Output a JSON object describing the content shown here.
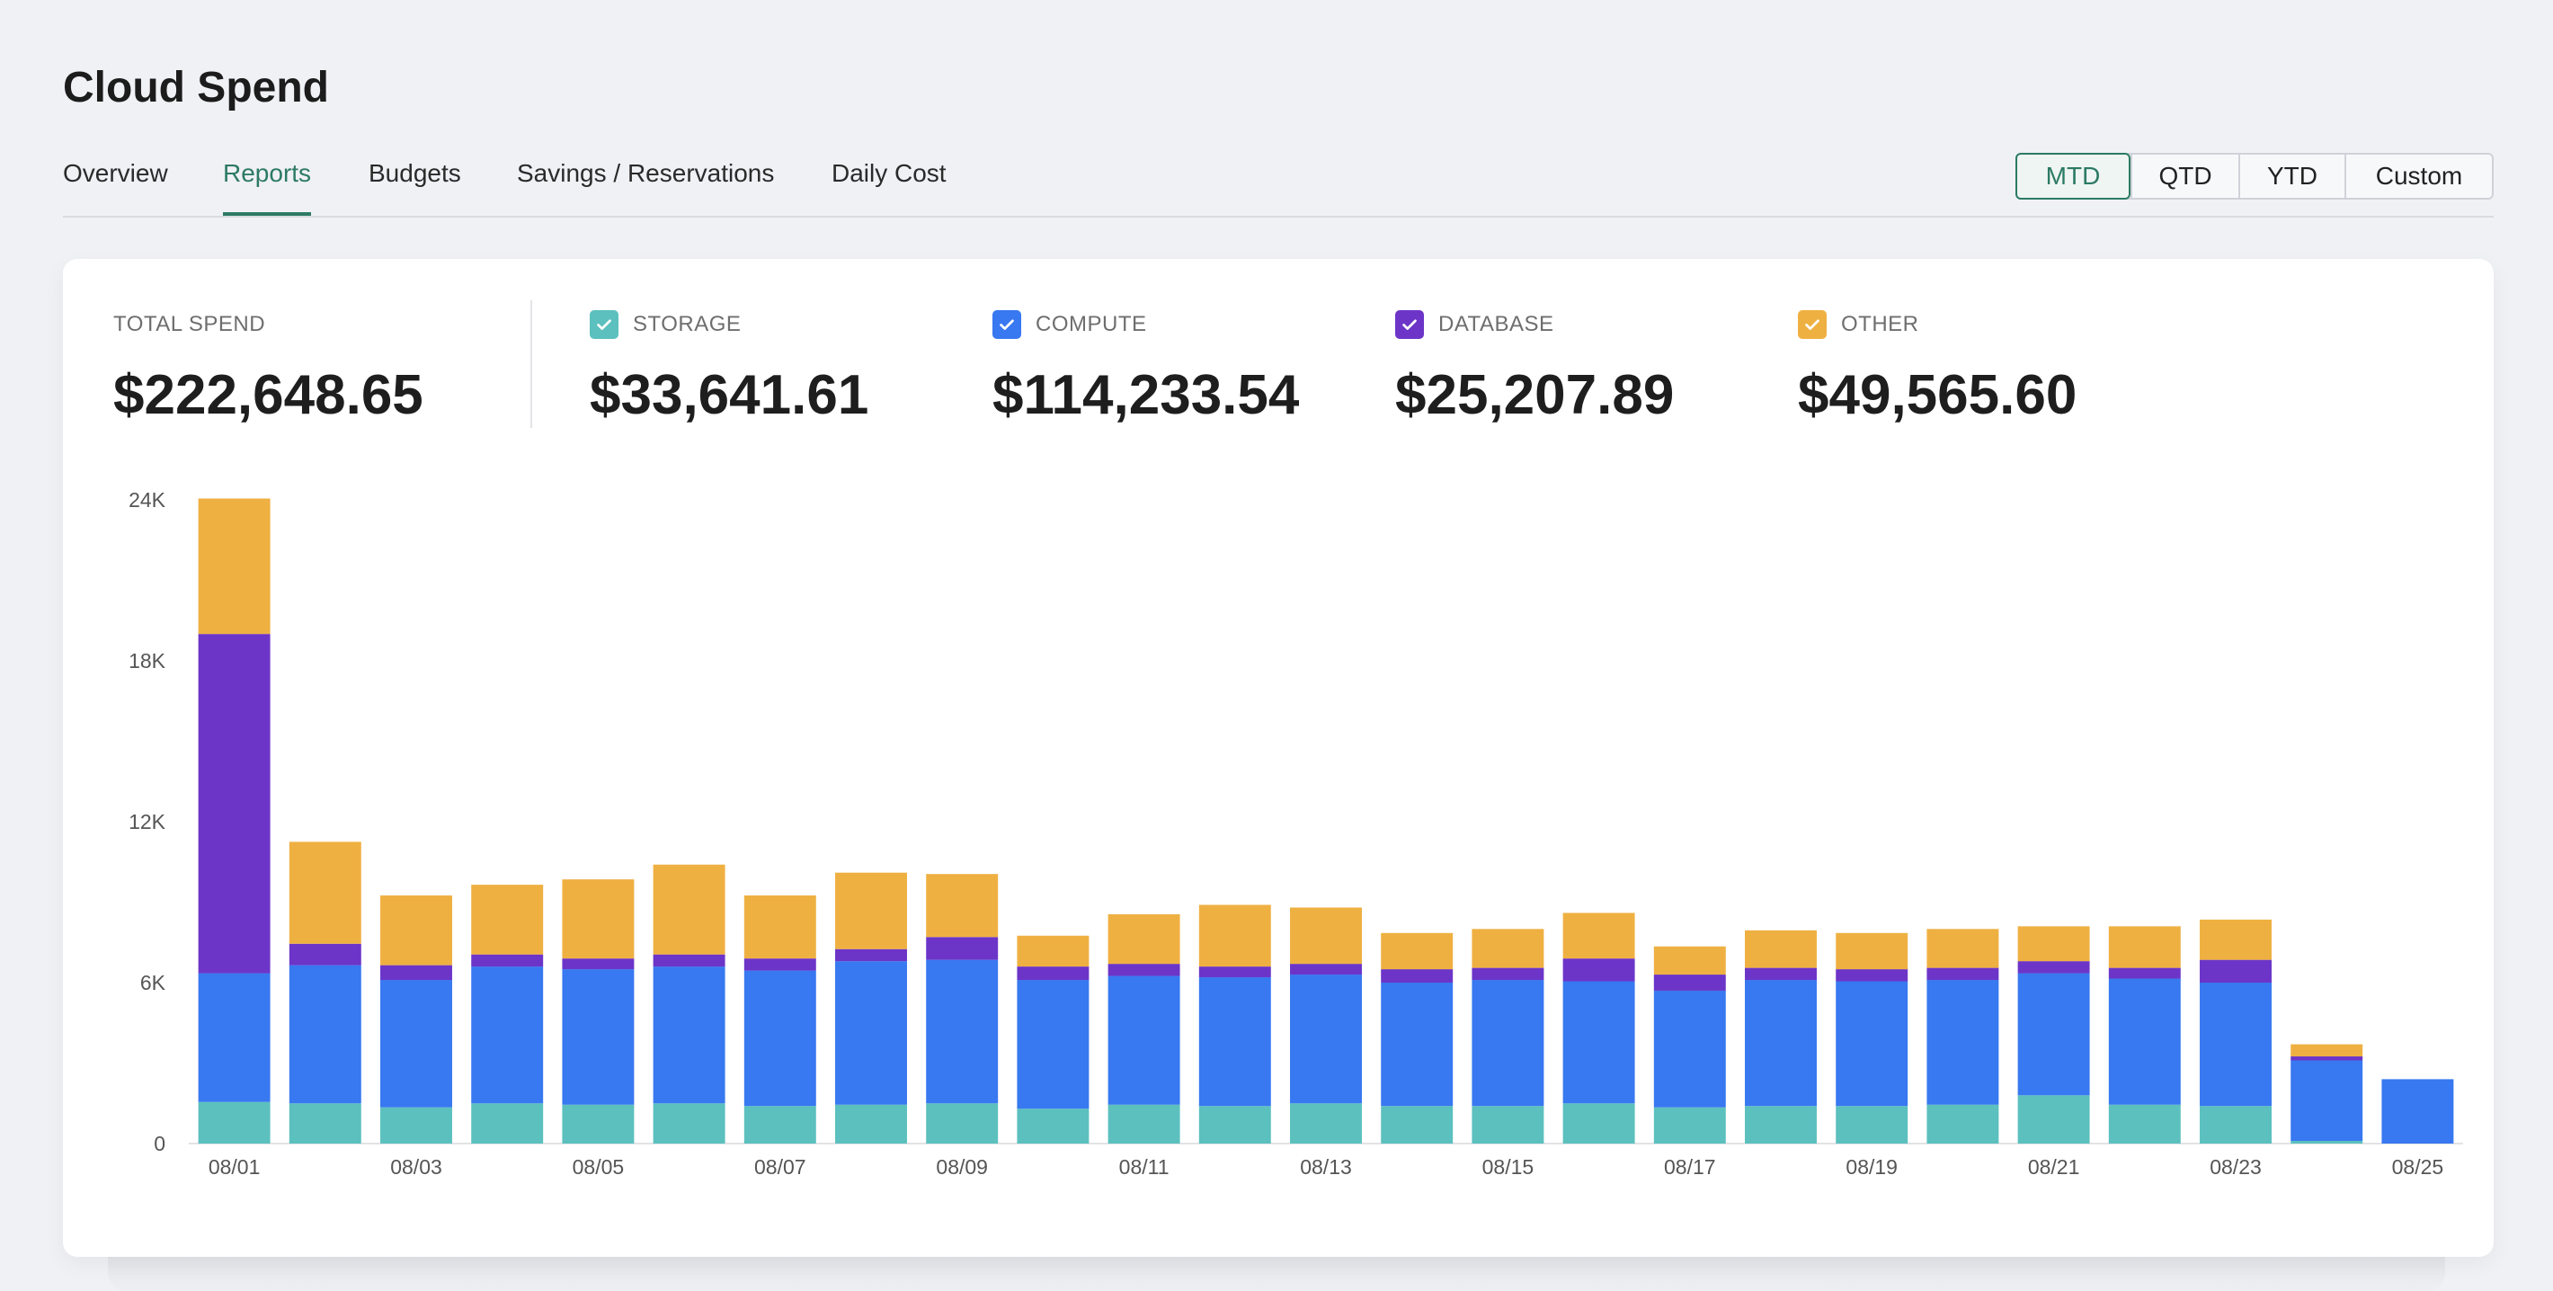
{
  "app": {
    "title": "Cloud Spend"
  },
  "tabs": [
    {
      "label": "Overview",
      "active": false
    },
    {
      "label": "Reports",
      "active": true
    },
    {
      "label": "Budgets",
      "active": false
    },
    {
      "label": "Savings / Reservations",
      "active": false
    },
    {
      "label": "Daily Cost",
      "active": false
    }
  ],
  "range": {
    "options": [
      "MTD",
      "QTD",
      "YTD",
      "Custom"
    ],
    "selected": "MTD"
  },
  "summary": {
    "total": {
      "label": "TOTAL SPEND",
      "value": "$222,648.65"
    },
    "categories": [
      {
        "label": "STORAGE",
        "value": "$33,641.61",
        "color": "#5bc0be",
        "checked": true,
        "icon": "checkmark-icon"
      },
      {
        "label": "COMPUTE",
        "value": "$114,233.54",
        "color": "#3878f0",
        "checked": true,
        "icon": "checkmark-icon"
      },
      {
        "label": "DATABASE",
        "value": "$25,207.89",
        "color": "#6c35c8",
        "checked": true,
        "icon": "checkmark-icon"
      },
      {
        "label": "OTHER",
        "value": "$49,565.60",
        "color": "#efb042",
        "checked": true,
        "icon": "checkmark-icon"
      }
    ]
  },
  "chart_data": {
    "type": "bar",
    "stacked": true,
    "title": "",
    "xlabel": "",
    "ylabel": "",
    "ylim": [
      0,
      24000
    ],
    "yticks": [
      0,
      6000,
      12000,
      18000,
      24000
    ],
    "ytick_labels": [
      "0",
      "6K",
      "12K",
      "18K",
      "24K"
    ],
    "categories": [
      "08/01",
      "08/02",
      "08/03",
      "08/04",
      "08/05",
      "08/06",
      "08/07",
      "08/08",
      "08/09",
      "08/10",
      "08/11",
      "08/12",
      "08/13",
      "08/14",
      "08/15",
      "08/16",
      "08/17",
      "08/18",
      "08/19",
      "08/20",
      "08/21",
      "08/22",
      "08/23",
      "08/24",
      "08/25"
    ],
    "xtick_labels": [
      "08/01",
      "",
      "08/03",
      "",
      "08/05",
      "",
      "08/07",
      "",
      "08/09",
      "",
      "08/11",
      "",
      "08/13",
      "",
      "08/15",
      "",
      "08/17",
      "",
      "08/19",
      "",
      "08/21",
      "",
      "08/23",
      "",
      "08/25"
    ],
    "grid": false,
    "series": [
      {
        "name": "STORAGE",
        "color": "#5bc0be",
        "values": [
          1550,
          1500,
          1350,
          1500,
          1450,
          1500,
          1400,
          1450,
          1500,
          1300,
          1450,
          1400,
          1500,
          1400,
          1400,
          1500,
          1350,
          1400,
          1400,
          1450,
          1800,
          1450,
          1400,
          100,
          0
        ]
      },
      {
        "name": "COMPUTE",
        "color": "#3878f0",
        "values": [
          4800,
          5150,
          4750,
          5100,
          5050,
          5100,
          5050,
          5350,
          5350,
          4800,
          4800,
          4800,
          4800,
          4600,
          4700,
          4550,
          4350,
          4700,
          4650,
          4650,
          4550,
          4700,
          4600,
          3000,
          2400
        ]
      },
      {
        "name": "DATABASE",
        "color": "#6c35c8",
        "values": [
          12650,
          800,
          550,
          450,
          400,
          450,
          450,
          450,
          850,
          500,
          450,
          400,
          400,
          500,
          450,
          850,
          600,
          450,
          450,
          450,
          450,
          400,
          850,
          150,
          0
        ]
      },
      {
        "name": "OTHER",
        "color": "#efb042",
        "values": [
          5050,
          3800,
          2600,
          2600,
          2950,
          3350,
          2350,
          2850,
          2350,
          1150,
          1850,
          2300,
          2100,
          1350,
          1450,
          1700,
          1050,
          1400,
          1350,
          1450,
          1300,
          1550,
          1500,
          450,
          0
        ]
      }
    ]
  }
}
